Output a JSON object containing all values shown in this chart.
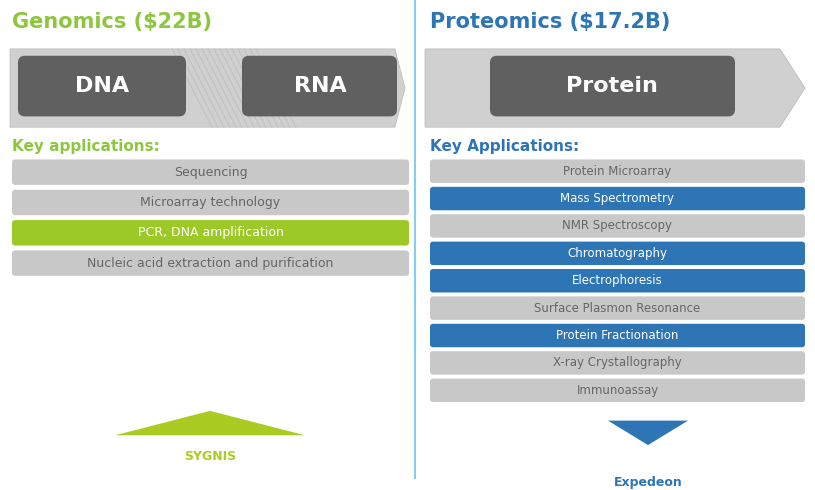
{
  "bg_color": "#ffffff",
  "divider_color": "#87CEEB",
  "genomics_title": "Genomics ($22B)",
  "proteomics_title": "Proteomics ($17.2B)",
  "genomics_title_color": "#8DC63F",
  "proteomics_title_color": "#2E75B6",
  "key_apps_left": "Key applications:",
  "key_apps_right": "Key Applications:",
  "key_apps_color_left": "#8DC63F",
  "key_apps_color_right": "#2E75B6",
  "arrow_fill_color": "#d0d0d0",
  "box_dark_color": "#606060",
  "box_text_color": "#ffffff",
  "genomics_items": [
    {
      "label": "Sequencing",
      "highlight": false
    },
    {
      "label": "Microarray technology",
      "highlight": false
    },
    {
      "label": "PCR, DNA amplification",
      "highlight": true
    },
    {
      "label": "Nucleic acid extraction and purification",
      "highlight": false
    }
  ],
  "proteomics_items": [
    {
      "label": "Protein Microarray",
      "highlight": false
    },
    {
      "label": "Mass Spectrometry",
      "highlight": true
    },
    {
      "label": "NMR Spectroscopy",
      "highlight": false
    },
    {
      "label": "Chromatography",
      "highlight": true
    },
    {
      "label": "Electrophoresis",
      "highlight": true
    },
    {
      "label": "Surface Plasmon Resonance",
      "highlight": false
    },
    {
      "label": "Protein Fractionation",
      "highlight": true
    },
    {
      "label": "X-ray Crystallography",
      "highlight": false
    },
    {
      "label": "Immunoassay",
      "highlight": false
    }
  ],
  "highlight_color_left": "#9DC926",
  "highlight_color_right": "#2E75B6",
  "gray_bar_color": "#c8c8c8",
  "gray_bar_text_color": "#666666",
  "highlight_text_color": "#ffffff",
  "sygnis_color": "#AACC22",
  "expedeon_color": "#2E75B6",
  "sygnis_label": "SYGNIS",
  "expedeon_label": "Expedeon"
}
